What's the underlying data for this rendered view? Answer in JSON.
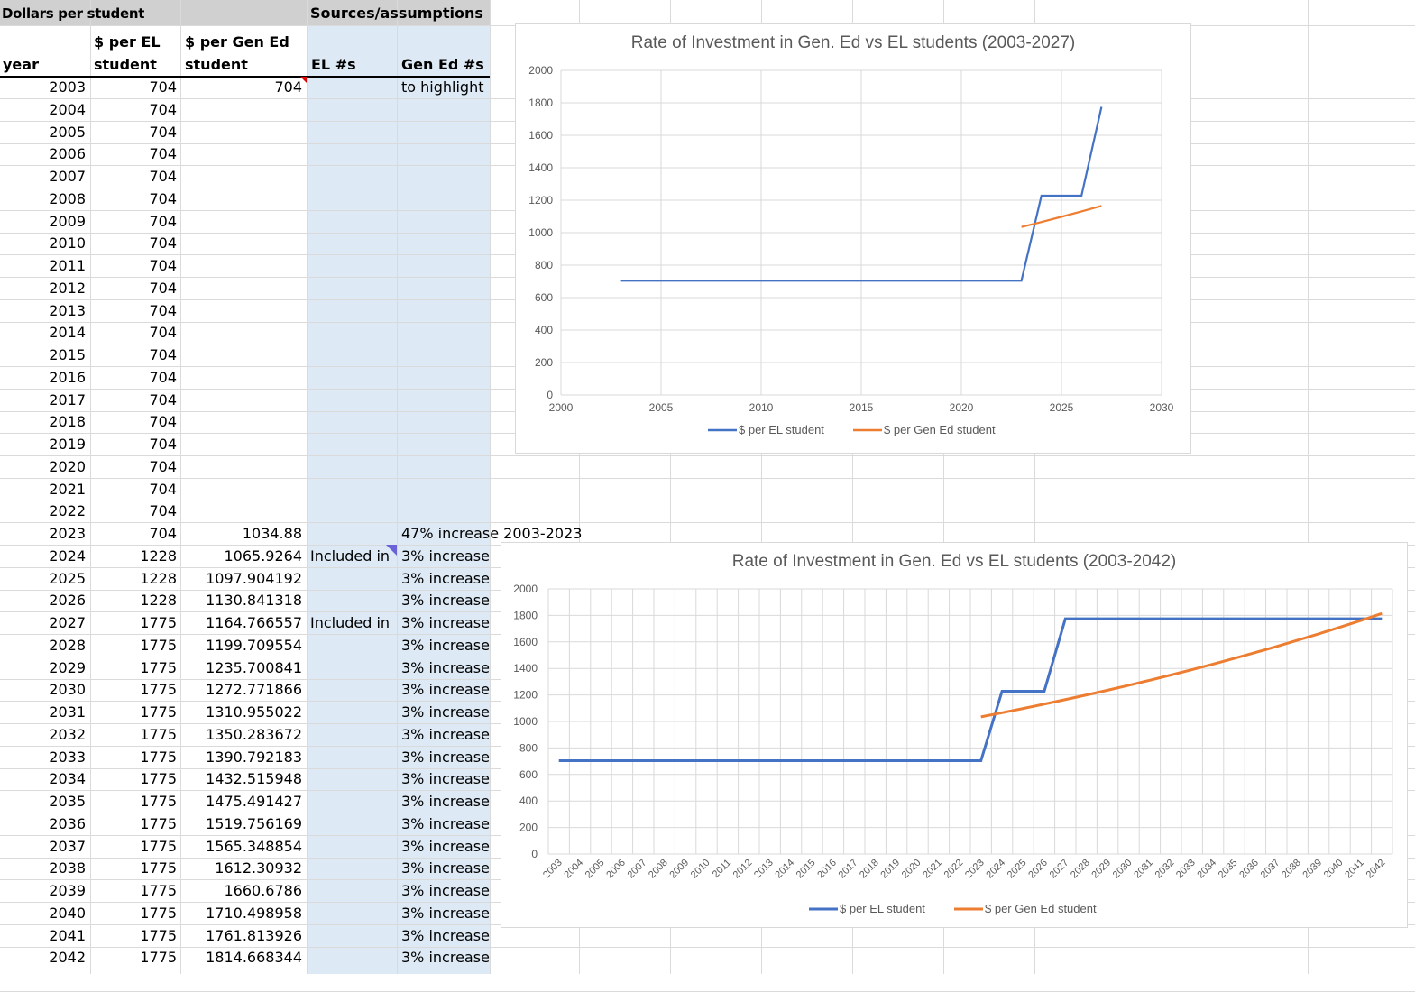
{
  "sheet": {
    "header_row": {
      "dollars_per_student": "Dollars per student",
      "sources_assumptions": "Sources/assumptions"
    },
    "columns": {
      "year": "year",
      "el_line1": "$ per EL",
      "el_line2": "student",
      "gen_line1": "$ per Gen Ed",
      "gen_line2": "student",
      "el_count": "EL #s",
      "gen_count": "Gen Ed #s"
    },
    "rows": [
      {
        "year": "2003",
        "el": "704",
        "gen": "704",
        "d": "",
        "e": "to highlight rate"
      },
      {
        "year": "2004",
        "el": "704",
        "gen": "",
        "d": "",
        "e": ""
      },
      {
        "year": "2005",
        "el": "704",
        "gen": "",
        "d": "",
        "e": ""
      },
      {
        "year": "2006",
        "el": "704",
        "gen": "",
        "d": "",
        "e": ""
      },
      {
        "year": "2007",
        "el": "704",
        "gen": "",
        "d": "",
        "e": ""
      },
      {
        "year": "2008",
        "el": "704",
        "gen": "",
        "d": "",
        "e": ""
      },
      {
        "year": "2009",
        "el": "704",
        "gen": "",
        "d": "",
        "e": ""
      },
      {
        "year": "2010",
        "el": "704",
        "gen": "",
        "d": "",
        "e": ""
      },
      {
        "year": "2011",
        "el": "704",
        "gen": "",
        "d": "",
        "e": ""
      },
      {
        "year": "2012",
        "el": "704",
        "gen": "",
        "d": "",
        "e": ""
      },
      {
        "year": "2013",
        "el": "704",
        "gen": "",
        "d": "",
        "e": ""
      },
      {
        "year": "2014",
        "el": "704",
        "gen": "",
        "d": "",
        "e": ""
      },
      {
        "year": "2015",
        "el": "704",
        "gen": "",
        "d": "",
        "e": ""
      },
      {
        "year": "2016",
        "el": "704",
        "gen": "",
        "d": "",
        "e": ""
      },
      {
        "year": "2017",
        "el": "704",
        "gen": "",
        "d": "",
        "e": ""
      },
      {
        "year": "2018",
        "el": "704",
        "gen": "",
        "d": "",
        "e": ""
      },
      {
        "year": "2019",
        "el": "704",
        "gen": "",
        "d": "",
        "e": ""
      },
      {
        "year": "2020",
        "el": "704",
        "gen": "",
        "d": "",
        "e": ""
      },
      {
        "year": "2021",
        "el": "704",
        "gen": "",
        "d": "",
        "e": ""
      },
      {
        "year": "2022",
        "el": "704",
        "gen": "",
        "d": "",
        "e": ""
      },
      {
        "year": "2023",
        "el": "704",
        "gen": "1034.88",
        "d": "",
        "e": "47% increase 2003-2023"
      },
      {
        "year": "2024",
        "el": "1228",
        "gen": "1065.9264",
        "d": "Included in",
        "e": "3% increase"
      },
      {
        "year": "2025",
        "el": "1228",
        "gen": "1097.904192",
        "d": "",
        "e": "3% increase"
      },
      {
        "year": "2026",
        "el": "1228",
        "gen": "1130.841318",
        "d": "",
        "e": "3% increase"
      },
      {
        "year": "2027",
        "el": "1775",
        "gen": "1164.766557",
        "d": "Included in",
        "e": "3% increase"
      },
      {
        "year": "2028",
        "el": "1775",
        "gen": "1199.709554",
        "d": "",
        "e": "3% increase"
      },
      {
        "year": "2029",
        "el": "1775",
        "gen": "1235.700841",
        "d": "",
        "e": "3% increase"
      },
      {
        "year": "2030",
        "el": "1775",
        "gen": "1272.771866",
        "d": "",
        "e": "3% increase"
      },
      {
        "year": "2031",
        "el": "1775",
        "gen": "1310.955022",
        "d": "",
        "e": "3% increase"
      },
      {
        "year": "2032",
        "el": "1775",
        "gen": "1350.283672",
        "d": "",
        "e": "3% increase"
      },
      {
        "year": "2033",
        "el": "1775",
        "gen": "1390.792183",
        "d": "",
        "e": "3% increase"
      },
      {
        "year": "2034",
        "el": "1775",
        "gen": "1432.515948",
        "d": "",
        "e": "3% increase"
      },
      {
        "year": "2035",
        "el": "1775",
        "gen": "1475.491427",
        "d": "",
        "e": "3% increase"
      },
      {
        "year": "2036",
        "el": "1775",
        "gen": "1519.756169",
        "d": "",
        "e": "3% increase"
      },
      {
        "year": "2037",
        "el": "1775",
        "gen": "1565.348854",
        "d": "",
        "e": "3% increase"
      },
      {
        "year": "2038",
        "el": "1775",
        "gen": "1612.30932",
        "d": "",
        "e": "3% increase"
      },
      {
        "year": "2039",
        "el": "1775",
        "gen": "1660.6786",
        "d": "",
        "e": "3% increase"
      },
      {
        "year": "2040",
        "el": "1775",
        "gen": "1710.498958",
        "d": "",
        "e": "3% increase"
      },
      {
        "year": "2041",
        "el": "1775",
        "gen": "1761.813926",
        "d": "",
        "e": "3% increase"
      },
      {
        "year": "2042",
        "el": "1775",
        "gen": "1814.668344",
        "d": "",
        "e": "3% increase"
      }
    ]
  },
  "chart_data": [
    {
      "type": "scatter",
      "title": "Rate of Investment in Gen. Ed vs EL students (2003-2027)",
      "xlim": [
        2000,
        2030
      ],
      "ylim": [
        0,
        2000
      ],
      "xticks": [
        2000,
        2005,
        2010,
        2015,
        2020,
        2025,
        2030
      ],
      "yticks": [
        0,
        200,
        400,
        600,
        800,
        1000,
        1200,
        1400,
        1600,
        1800,
        2000
      ],
      "grid": true,
      "legend": "bottom",
      "series": [
        {
          "name": "$ per EL student",
          "color": "#4472c4",
          "x": [
            2003,
            2004,
            2005,
            2006,
            2007,
            2008,
            2009,
            2010,
            2011,
            2012,
            2013,
            2014,
            2015,
            2016,
            2017,
            2018,
            2019,
            2020,
            2021,
            2022,
            2023,
            2024,
            2025,
            2026,
            2027
          ],
          "y": [
            704,
            704,
            704,
            704,
            704,
            704,
            704,
            704,
            704,
            704,
            704,
            704,
            704,
            704,
            704,
            704,
            704,
            704,
            704,
            704,
            704,
            1228,
            1228,
            1228,
            1775
          ]
        },
        {
          "name": "$ per Gen Ed student",
          "color": "#ed7d31",
          "x": [
            2023,
            2024,
            2025,
            2026,
            2027
          ],
          "y": [
            1034.88,
            1065.9264,
            1097.904192,
            1130.841318,
            1164.766557
          ]
        }
      ]
    },
    {
      "type": "line",
      "title": "Rate of Investment in Gen. Ed vs EL students (2003-2042)",
      "categories": [
        "2003",
        "2004",
        "2005",
        "2006",
        "2007",
        "2008",
        "2009",
        "2010",
        "2011",
        "2012",
        "2013",
        "2014",
        "2015",
        "2016",
        "2017",
        "2018",
        "2019",
        "2020",
        "2021",
        "2022",
        "2023",
        "2024",
        "2025",
        "2026",
        "2027",
        "2028",
        "2029",
        "2030",
        "2031",
        "2032",
        "2033",
        "2034",
        "2035",
        "2036",
        "2037",
        "2038",
        "2039",
        "2040",
        "2041",
        "2042"
      ],
      "ylim": [
        0,
        2000
      ],
      "yticks": [
        0,
        200,
        400,
        600,
        800,
        1000,
        1200,
        1400,
        1600,
        1800,
        2000
      ],
      "grid": true,
      "legend": "bottom",
      "series": [
        {
          "name": "$ per EL student",
          "color": "#4472c4",
          "values": [
            704,
            704,
            704,
            704,
            704,
            704,
            704,
            704,
            704,
            704,
            704,
            704,
            704,
            704,
            704,
            704,
            704,
            704,
            704,
            704,
            704,
            1228,
            1228,
            1228,
            1775,
            1775,
            1775,
            1775,
            1775,
            1775,
            1775,
            1775,
            1775,
            1775,
            1775,
            1775,
            1775,
            1775,
            1775,
            1775
          ]
        },
        {
          "name": "$ per Gen Ed student",
          "color": "#ed7d31",
          "values": [
            null,
            null,
            null,
            null,
            null,
            null,
            null,
            null,
            null,
            null,
            null,
            null,
            null,
            null,
            null,
            null,
            null,
            null,
            null,
            null,
            1034.88,
            1065.9264,
            1097.904192,
            1130.841318,
            1164.766557,
            1199.709554,
            1235.700841,
            1272.771866,
            1310.955022,
            1350.283672,
            1390.792183,
            1432.515948,
            1475.491427,
            1519.756169,
            1565.348854,
            1612.30932,
            1660.6786,
            1710.498958,
            1761.813926,
            1814.668344
          ]
        }
      ]
    }
  ]
}
